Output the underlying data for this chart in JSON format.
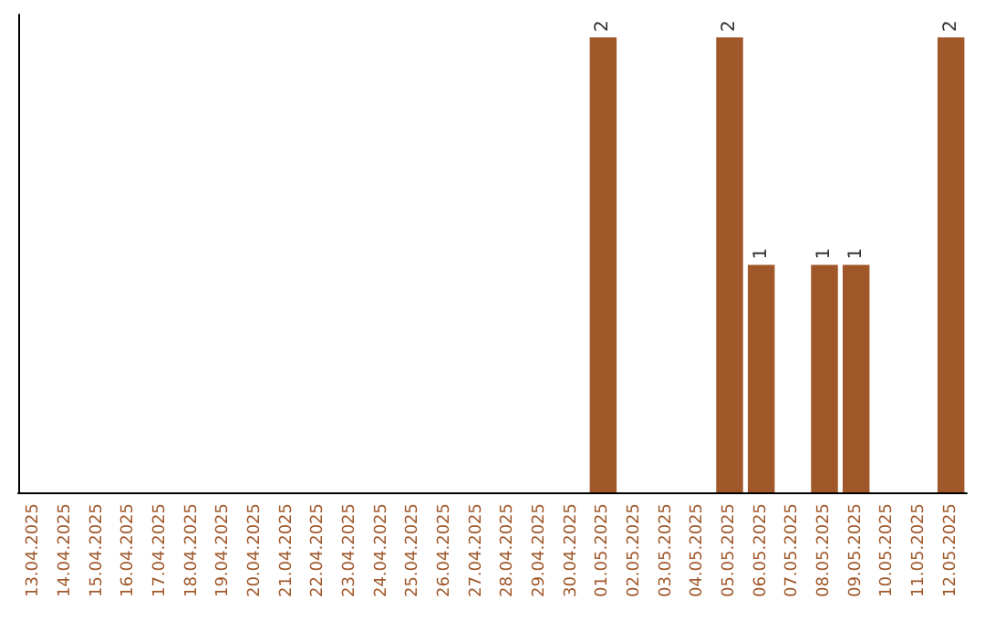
{
  "chart_data": {
    "type": "bar",
    "categories": [
      "13.04.2025",
      "14.04.2025",
      "15.04.2025",
      "16.04.2025",
      "17.04.2025",
      "18.04.2025",
      "19.04.2025",
      "20.04.2025",
      "21.04.2025",
      "22.04.2025",
      "23.04.2025",
      "24.04.2025",
      "25.04.2025",
      "26.04.2025",
      "27.04.2025",
      "28.04.2025",
      "29.04.2025",
      "30.04.2025",
      "01.05.2025",
      "02.05.2025",
      "03.05.2025",
      "04.05.2025",
      "05.05.2025",
      "06.05.2025",
      "07.05.2025",
      "08.05.2025",
      "09.05.2025",
      "10.05.2025",
      "11.05.2025",
      "12.05.2025"
    ],
    "values": [
      null,
      null,
      null,
      null,
      null,
      null,
      null,
      null,
      null,
      null,
      null,
      null,
      null,
      null,
      null,
      null,
      null,
      null,
      2,
      null,
      null,
      null,
      2,
      1,
      null,
      1,
      1,
      null,
      null,
      2
    ],
    "value_labels": [
      null,
      null,
      null,
      null,
      null,
      null,
      null,
      null,
      null,
      null,
      null,
      null,
      null,
      null,
      null,
      null,
      null,
      null,
      "2",
      null,
      null,
      null,
      "2",
      "1",
      null,
      "1",
      "1",
      null,
      null,
      "2"
    ],
    "color": "#a0582a",
    "ylim": [
      0,
      2.1
    ],
    "tick_labels": "x",
    "grid": false
  }
}
